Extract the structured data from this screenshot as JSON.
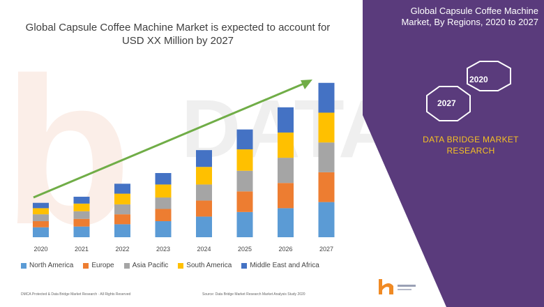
{
  "chart_data": {
    "type": "bar",
    "stacked": true,
    "title": "Global Capsule Coffee Machine Market is expected to account for USD XX Million by 2027",
    "categories": [
      "2020",
      "2021",
      "2022",
      "2023",
      "2024",
      "2025",
      "2026",
      "2027"
    ],
    "series": [
      {
        "name": "North America",
        "color": "#5b9bd5",
        "values": [
          13,
          14,
          17,
          21,
          27,
          33,
          38,
          46
        ]
      },
      {
        "name": "Europe",
        "color": "#ed7d31",
        "values": [
          8,
          10,
          13,
          16,
          21,
          27,
          33,
          39
        ]
      },
      {
        "name": "Asia Pacific",
        "color": "#a5a5a5",
        "values": [
          9,
          10,
          13,
          15,
          21,
          27,
          33,
          39
        ]
      },
      {
        "name": "South America",
        "color": "#ffc000",
        "values": [
          8,
          10,
          14,
          17,
          23,
          28,
          33,
          39
        ]
      },
      {
        "name": "Middle East and Africa",
        "color": "#4472c4",
        "values": [
          7,
          9,
          13,
          15,
          22,
          26,
          33,
          39
        ]
      }
    ],
    "trend_arrow_color": "#70ad47",
    "ylim": [
      0,
      210
    ],
    "legend_position": "bottom"
  },
  "panel": {
    "title": "Global Capsule Coffee Machine Market, By Regions, 2020 to 2027",
    "hex_years": [
      "2020",
      "2027"
    ],
    "brand": "DATA BRIDGE MARKET RESEARCH",
    "color": "#5a3b7c",
    "accent": "#f5c023"
  },
  "footer": {
    "left": "DMCA Protected & Data Bridge Market Research · All Rights Reserved",
    "right": "Source: Data Bridge Market Research Market Analysis Study 2020"
  },
  "watermark_text": "DATA BR"
}
